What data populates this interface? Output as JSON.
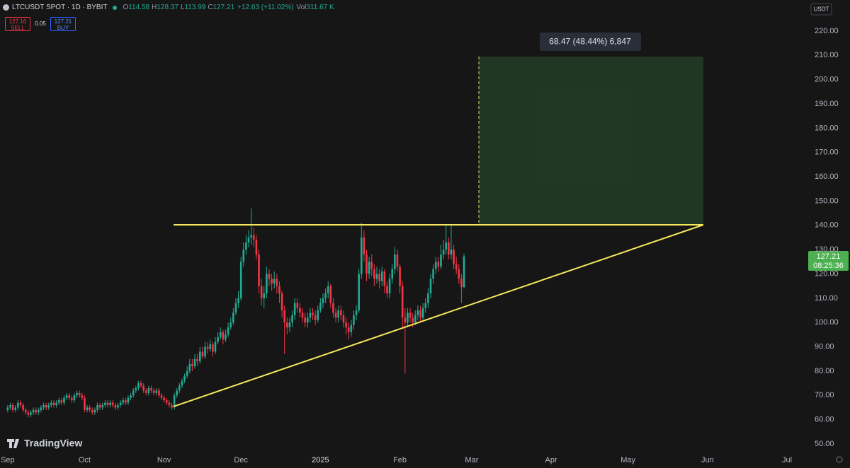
{
  "toolbar": {
    "symbol": "LTCUSDT SPOT · 1D · BYBIT",
    "legend": [
      {
        "label": "O",
        "value": 114.58
      },
      {
        "label": "H",
        "value": 128.37
      },
      {
        "label": "L",
        "value": 113.99
      },
      {
        "label": "C",
        "value": 127.21
      }
    ],
    "change": "+12.63 (+11.02%)",
    "volume_label": "Vol",
    "volume": "311.67 K",
    "sell": {
      "price": 127.16,
      "label": "SELL"
    },
    "spread": 0.05,
    "buy": {
      "price": 127.21,
      "label": "BUY"
    },
    "currency": "USDT",
    "countdown": "08:25:36",
    "measurement": "68.47 (48.44%) 6,847",
    "brand": "TradingView"
  },
  "chart_data": {
    "type": "candlestick",
    "up_color": "#22ab94",
    "down_color": "#f23645",
    "grid": false,
    "xlim": [
      -3,
      312
    ],
    "xticks": [
      {
        "value": 0,
        "label": "Sep"
      },
      {
        "value": 30,
        "label": "Oct"
      },
      {
        "value": 61,
        "label": "Nov"
      },
      {
        "value": 91,
        "label": "Dec"
      },
      {
        "value": 122,
        "label": "2025"
      },
      {
        "value": 153,
        "label": "Feb"
      },
      {
        "value": 181,
        "label": "Mar"
      },
      {
        "value": 212,
        "label": "Apr"
      },
      {
        "value": 242,
        "label": "May"
      },
      {
        "value": 273,
        "label": "Jun"
      },
      {
        "value": 304,
        "label": "Jul"
      }
    ],
    "ylim": [
      46.5,
      232.8
    ],
    "yticks": [
      {
        "value": 50,
        "label": "50.00"
      },
      {
        "value": 60,
        "label": "60.00"
      },
      {
        "value": 70,
        "label": "70.00"
      },
      {
        "value": 80,
        "label": "80.00"
      },
      {
        "value": 90,
        "label": "90.00"
      },
      {
        "value": 100,
        "label": "100.00"
      },
      {
        "value": 110,
        "label": "110.00"
      },
      {
        "value": 120,
        "label": "120.00"
      },
      {
        "value": 130,
        "label": "130.00"
      },
      {
        "value": 140,
        "label": "140.00"
      },
      {
        "value": 150,
        "label": "150.00"
      },
      {
        "value": 160,
        "label": "160.00"
      },
      {
        "value": 170,
        "label": "170.00"
      },
      {
        "value": 180,
        "label": "180.00"
      },
      {
        "value": 190,
        "label": "190.00"
      },
      {
        "value": 200,
        "label": "200.00"
      },
      {
        "value": 210,
        "label": "210.00"
      },
      {
        "value": 220,
        "label": "220.00"
      }
    ],
    "open": [
      64,
      65,
      66,
      64,
      65,
      67,
      66,
      64,
      63,
      62,
      63,
      64,
      63,
      64,
      65,
      66,
      65,
      66,
      67,
      66,
      67,
      68,
      67,
      69,
      70,
      69,
      68,
      70,
      71,
      70,
      69,
      64,
      65,
      64,
      63,
      64,
      66,
      65,
      66,
      67,
      66,
      67,
      66,
      65,
      66,
      67,
      68,
      67,
      69,
      70,
      72,
      73,
      75,
      74,
      72,
      71,
      73,
      72,
      71,
      72,
      70,
      69,
      68,
      67,
      66,
      65,
      70,
      72,
      74,
      76,
      78,
      80,
      83,
      82,
      85,
      84,
      88,
      86,
      90,
      89,
      91,
      88,
      92,
      94,
      96,
      93,
      95,
      98,
      100,
      104,
      108,
      110,
      125,
      130,
      133,
      135,
      136,
      134,
      128,
      115,
      110,
      112,
      120,
      118,
      116,
      118,
      115,
      112,
      105,
      100,
      98,
      100,
      103,
      108,
      106,
      104,
      102,
      100,
      102,
      104,
      103,
      101,
      105,
      108,
      110,
      112,
      115,
      108,
      104,
      102,
      105,
      103,
      100,
      98,
      96,
      99,
      103,
      105,
      120,
      135,
      128,
      120,
      125,
      122,
      118,
      120,
      117,
      121,
      115,
      112,
      118,
      122,
      128,
      123,
      115,
      102,
      100,
      104,
      102,
      100,
      103,
      105,
      102,
      106,
      108,
      112,
      118,
      122,
      125,
      123,
      128,
      130,
      133,
      128,
      130,
      124,
      122,
      118,
      114.58
    ],
    "high": [
      66,
      67,
      67,
      66,
      68,
      68,
      67,
      65,
      64,
      64,
      65,
      65,
      65,
      66,
      67,
      67,
      67,
      68,
      68,
      68,
      69,
      69,
      70,
      71,
      71,
      70,
      71,
      72,
      72,
      71,
      70,
      66,
      66,
      65,
      65,
      67,
      67,
      67,
      68,
      68,
      68,
      68,
      67,
      67,
      68,
      69,
      69,
      70,
      71,
      73,
      74,
      76,
      76,
      75,
      73,
      74,
      74,
      73,
      73,
      73,
      71,
      70,
      69,
      68,
      67,
      71,
      73,
      75,
      77,
      79,
      82,
      85,
      85,
      87,
      87,
      90,
      90,
      92,
      92,
      93,
      92,
      94,
      96,
      98,
      97,
      97,
      100,
      102,
      106,
      110,
      113,
      127,
      133,
      136,
      138,
      147,
      139,
      136,
      130,
      118,
      115,
      123,
      122,
      120,
      121,
      120,
      117,
      113,
      107,
      102,
      102,
      105,
      110,
      110,
      108,
      106,
      104,
      104,
      106,
      106,
      105,
      107,
      110,
      112,
      114,
      117,
      116,
      110,
      106,
      107,
      107,
      105,
      102,
      100,
      101,
      105,
      107,
      122,
      141,
      138,
      130,
      127,
      128,
      124,
      123,
      122,
      123,
      122,
      117,
      120,
      124,
      131,
      130,
      124,
      117,
      106,
      106,
      106,
      104,
      105,
      107,
      107,
      108,
      110,
      114,
      120,
      124,
      127,
      127,
      132,
      134,
      140,
      135,
      140,
      132,
      127,
      124,
      120,
      128.37
    ],
    "low": [
      63,
      64,
      63,
      63,
      64,
      65,
      63,
      62,
      61,
      61,
      62,
      62,
      62,
      63,
      64,
      64,
      64,
      65,
      65,
      65,
      66,
      66,
      66,
      68,
      68,
      67,
      67,
      69,
      69,
      68,
      63,
      63,
      63,
      62,
      62,
      63,
      64,
      64,
      65,
      65,
      65,
      65,
      64,
      64,
      65,
      66,
      66,
      66,
      68,
      69,
      71,
      72,
      73,
      71,
      70,
      70,
      71,
      70,
      70,
      69,
      68,
      67,
      66,
      65,
      64,
      64,
      69,
      71,
      73,
      75,
      77,
      79,
      80,
      81,
      82,
      83,
      85,
      85,
      87,
      88,
      86,
      87,
      91,
      93,
      91,
      92,
      94,
      97,
      99,
      103,
      106,
      109,
      123,
      128,
      131,
      132,
      131,
      126,
      112,
      107,
      106,
      110,
      115,
      113,
      114,
      112,
      108,
      102,
      87,
      95,
      96,
      98,
      101,
      104,
      102,
      100,
      98,
      98,
      100,
      101,
      99,
      100,
      104,
      106,
      108,
      110,
      106,
      102,
      100,
      100,
      101,
      98,
      95,
      93,
      94,
      97,
      101,
      104,
      118,
      125,
      117,
      118,
      119,
      115,
      116,
      114,
      115,
      112,
      110,
      110,
      116,
      120,
      121,
      112,
      98,
      79,
      98,
      100,
      98,
      99,
      101,
      100,
      101,
      104,
      106,
      110,
      116,
      120,
      121,
      122,
      126,
      128,
      126,
      126,
      122,
      120,
      116,
      108,
      113.99
    ],
    "close": [
      65,
      66,
      64,
      65,
      67,
      66,
      64,
      63,
      62,
      63,
      64,
      63,
      64,
      65,
      66,
      65,
      66,
      67,
      66,
      67,
      68,
      67,
      69,
      70,
      69,
      68,
      70,
      71,
      70,
      69,
      64,
      65,
      64,
      63,
      64,
      66,
      65,
      66,
      67,
      66,
      67,
      66,
      65,
      66,
      67,
      68,
      67,
      69,
      70,
      72,
      73,
      75,
      74,
      72,
      71,
      73,
      72,
      71,
      72,
      70,
      69,
      68,
      67,
      66,
      65,
      70,
      72,
      74,
      76,
      78,
      80,
      83,
      82,
      85,
      84,
      88,
      86,
      90,
      89,
      91,
      88,
      92,
      94,
      96,
      93,
      95,
      98,
      100,
      104,
      108,
      110,
      125,
      130,
      133,
      135,
      136,
      134,
      128,
      115,
      110,
      112,
      120,
      118,
      116,
      118,
      115,
      112,
      105,
      100,
      98,
      100,
      103,
      108,
      106,
      104,
      102,
      100,
      102,
      104,
      103,
      101,
      105,
      108,
      110,
      112,
      115,
      108,
      104,
      102,
      105,
      103,
      100,
      98,
      96,
      99,
      103,
      105,
      120,
      135,
      128,
      120,
      125,
      122,
      118,
      120,
      117,
      121,
      115,
      112,
      118,
      122,
      128,
      123,
      115,
      102,
      100,
      104,
      102,
      100,
      103,
      105,
      102,
      106,
      108,
      112,
      118,
      122,
      125,
      123,
      128,
      130,
      133,
      128,
      130,
      124,
      122,
      118,
      114.58,
      127.21
    ]
  }
}
